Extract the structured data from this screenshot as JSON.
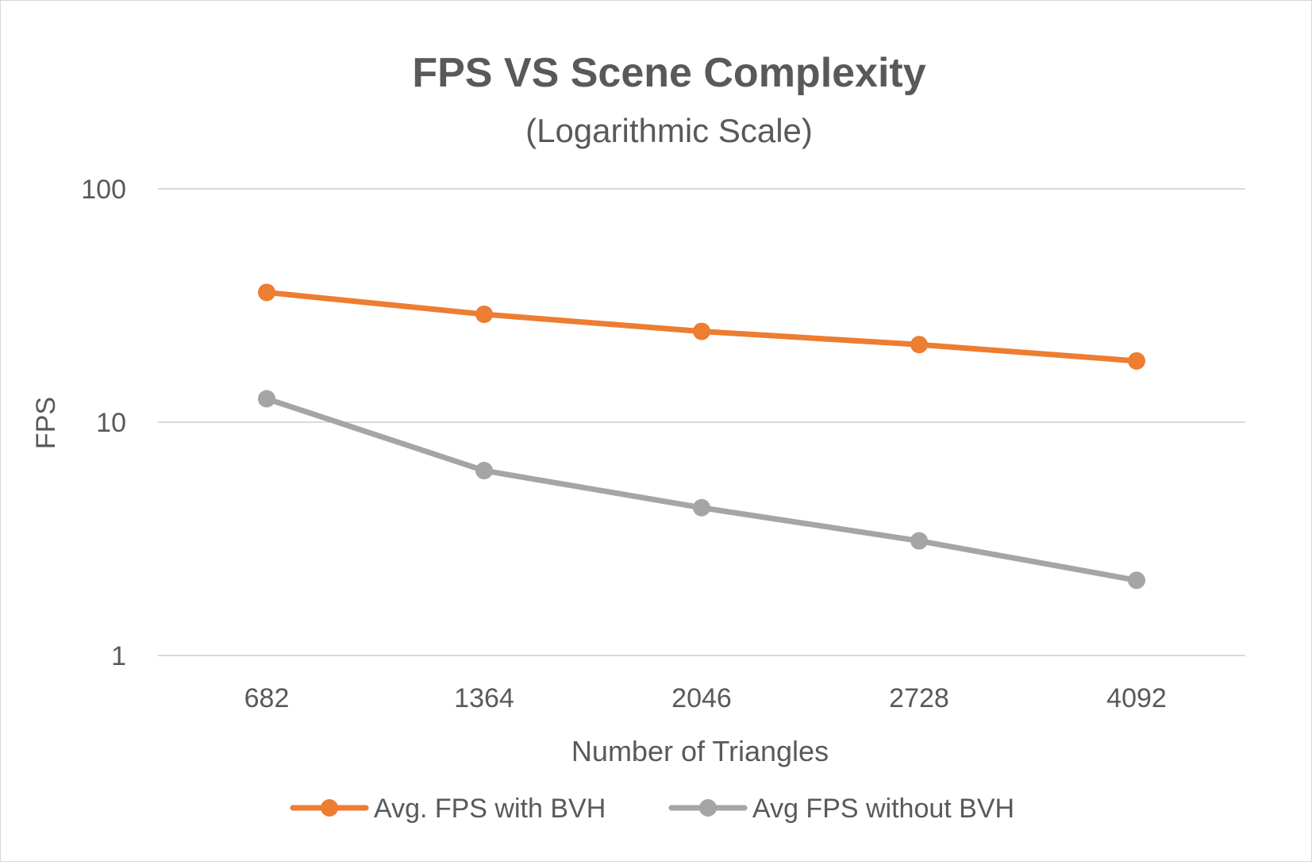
{
  "chart_data": {
    "type": "line",
    "title": "FPS VS Scene Complexity",
    "subtitle": "(Logarithmic Scale)",
    "xlabel": "Number of Triangles",
    "ylabel": "FPS",
    "y_scale": "log",
    "ylim": [
      1,
      100
    ],
    "y_ticks": [
      "100",
      "10",
      "1"
    ],
    "grid": "horizontal",
    "legend_position": "bottom",
    "categories": [
      "682",
      "1364",
      "2046",
      "2728",
      "4092"
    ],
    "series": [
      {
        "name": "Avg. FPS with BVH",
        "color": "#ED7D31",
        "values": [
          36,
          29,
          24.5,
          21.5,
          18.3
        ]
      },
      {
        "name": "Avg FPS without BVH",
        "color": "#A5A5A5",
        "values": [
          12.6,
          6.2,
          4.3,
          3.1,
          2.1
        ]
      }
    ]
  },
  "colors": {
    "text": "#595959",
    "gridline": "#d9d9d9"
  }
}
